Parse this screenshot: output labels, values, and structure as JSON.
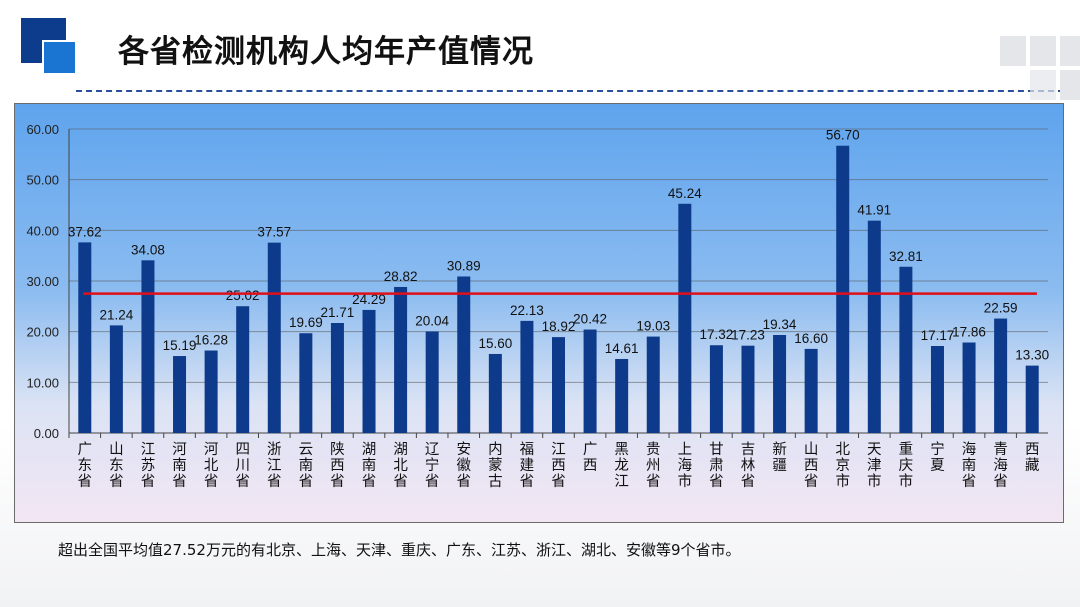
{
  "slide": {
    "title": "各省检测机构人均年产值情况",
    "note": "超出全国平均值27.52万元的有北京、上海、天津、重庆、广东、江苏、浙江、湖北、安徽等9个省市。"
  },
  "colors": {
    "bar": "#0d3a8a",
    "average_line": "#e0101a",
    "title_square_dark": "#0d3c8c",
    "title_square_light": "#1a75d2"
  },
  "chart_data": {
    "type": "bar",
    "categories": [
      "广东省",
      "山东省",
      "江苏省",
      "河南省",
      "河北省",
      "四川省",
      "浙江省",
      "云南省",
      "陕西省",
      "湖南省",
      "湖北省",
      "辽宁省",
      "安徽省",
      "内蒙古",
      "福建省",
      "江西省",
      "广西",
      "黑龙江",
      "贵州省",
      "上海市",
      "甘肃省",
      "吉林省",
      "新疆",
      "山西省",
      "北京市",
      "天津市",
      "重庆市",
      "宁夏",
      "海南省",
      "青海省",
      "西藏"
    ],
    "values": [
      37.62,
      21.24,
      34.08,
      15.19,
      16.28,
      25.02,
      37.57,
      19.69,
      21.71,
      24.29,
      28.82,
      20.04,
      30.89,
      15.6,
      22.13,
      18.92,
      20.42,
      14.61,
      19.03,
      45.24,
      17.32,
      17.23,
      19.34,
      16.6,
      56.7,
      41.91,
      32.81,
      17.17,
      17.86,
      22.59,
      13.3
    ],
    "value_labels": [
      "37.62",
      "21.24",
      "34.08",
      "15.19",
      "16.28",
      "25.02",
      "37.57",
      "19.69",
      "21.71",
      "24.29",
      "28.82",
      "20.04",
      "30.89",
      "15.60",
      "22.13",
      "18.92",
      "20.42",
      "14.61",
      "19.03",
      "45.24",
      "17.32",
      "17.23",
      "19.34",
      "16.60",
      "56.70",
      "41.91",
      "32.81",
      "17.17",
      "17.86",
      "22.59",
      "13.30"
    ],
    "reference_line": {
      "value": 27.52
    },
    "yticks": [
      "0.00",
      "10.00",
      "20.00",
      "30.00",
      "40.00",
      "50.00",
      "60.00"
    ],
    "ylim": [
      0,
      60
    ],
    "grid": true,
    "title": "",
    "xlabel": "",
    "ylabel": ""
  }
}
